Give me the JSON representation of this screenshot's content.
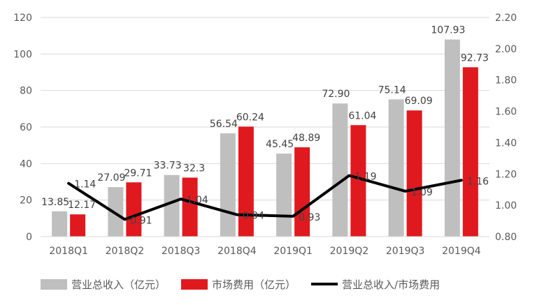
{
  "chart_data": {
    "type": "bar",
    "categories": [
      "2018Q1",
      "2018Q2",
      "2018Q3",
      "2018Q4",
      "2019Q1",
      "2019Q2",
      "2019Q3",
      "2019Q4"
    ],
    "series": [
      {
        "name": "营业总收入（亿元）",
        "type": "bar",
        "axis": "left",
        "color": "#bfbfbf",
        "values": [
          13.85,
          27.09,
          33.73,
          56.54,
          45.45,
          72.9,
          75.14,
          107.93
        ],
        "labels": [
          "13.85",
          "27.09",
          "33.73",
          "56.54",
          "45.45",
          "72.90",
          "75.14",
          "107.93"
        ]
      },
      {
        "name": "市场费用（亿元）",
        "type": "bar",
        "axis": "left",
        "color": "#e0191f",
        "values": [
          12.17,
          29.71,
          32.3,
          60.24,
          48.89,
          61.04,
          69.09,
          92.73
        ],
        "labels": [
          "12.17",
          "29.71",
          "32.3",
          "60.24",
          "48.89",
          "61.04",
          "69.09",
          "92.73"
        ]
      },
      {
        "name": "营业总收入/市场费用",
        "type": "line",
        "axis": "right",
        "color": "#000000",
        "values": [
          1.14,
          0.91,
          1.04,
          0.94,
          0.93,
          1.19,
          1.09,
          1.16
        ],
        "labels": [
          "1.14",
          "0.91",
          "1.04",
          "0.94",
          "0.93",
          "1.19",
          "1.09",
          "1.16"
        ]
      }
    ],
    "y_left": {
      "min": 0,
      "max": 120,
      "step": 20,
      "ticks": [
        "0",
        "20",
        "40",
        "60",
        "80",
        "100",
        "120"
      ]
    },
    "y_right": {
      "min": 0.8,
      "max": 2.2,
      "step": 0.2,
      "ticks": [
        "0.80",
        "1.00",
        "1.20",
        "1.40",
        "1.60",
        "1.80",
        "2.00",
        "2.20"
      ]
    },
    "grid": true,
    "legend": "bottom"
  }
}
